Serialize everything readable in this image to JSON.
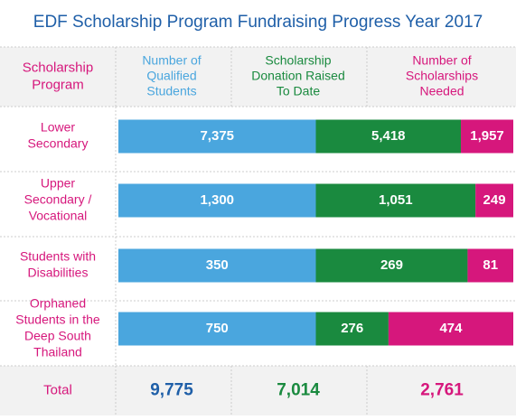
{
  "title": "EDF Scholarship Program Fundraising Progress Year 2017",
  "headers": {
    "program": [
      "Scholarship",
      "Program"
    ],
    "qualified": [
      "Number of",
      "Qualified",
      "Students"
    ],
    "donation": [
      "Scholarship",
      "Donation Raised",
      "To Date"
    ],
    "needed": [
      "Number of",
      "Scholarships",
      "Needed"
    ]
  },
  "colors": {
    "title": "#1f5fa8",
    "qualified": "#4aa6de",
    "donation": "#1a8a3f",
    "needed": "#d6177c",
    "divider": "#cccccc",
    "header_band": "#f2f2f2",
    "total_band": "#f2f2f2"
  },
  "chart_data": {
    "type": "bar",
    "orientation": "horizontal",
    "stacking": "overlay",
    "categories": [
      [
        "Lower",
        "Secondary"
      ],
      [
        "Upper",
        "Secondary /",
        "Vocational"
      ],
      [
        "Students with",
        "Disabilities"
      ],
      [
        "Orphaned",
        "Students in the",
        "Deep South",
        "Thailand"
      ]
    ],
    "series": [
      {
        "name": "Number of Qualified Students",
        "values": [
          7375,
          1300,
          350,
          750
        ],
        "labels": [
          "7,375",
          "1,300",
          "350",
          "750"
        ]
      },
      {
        "name": "Scholarship Donation Raised To Date",
        "values": [
          5418,
          1051,
          269,
          276
        ],
        "labels": [
          "5,418",
          "1,051",
          "269",
          "276"
        ]
      },
      {
        "name": "Number of Scholarships Needed",
        "values": [
          1957,
          249,
          81,
          474
        ],
        "labels": [
          "1,957",
          "249",
          "81",
          "474"
        ]
      }
    ],
    "totals": {
      "label": "Total",
      "qualified": "9,775",
      "donation": "7,014",
      "needed": "2,761"
    }
  }
}
